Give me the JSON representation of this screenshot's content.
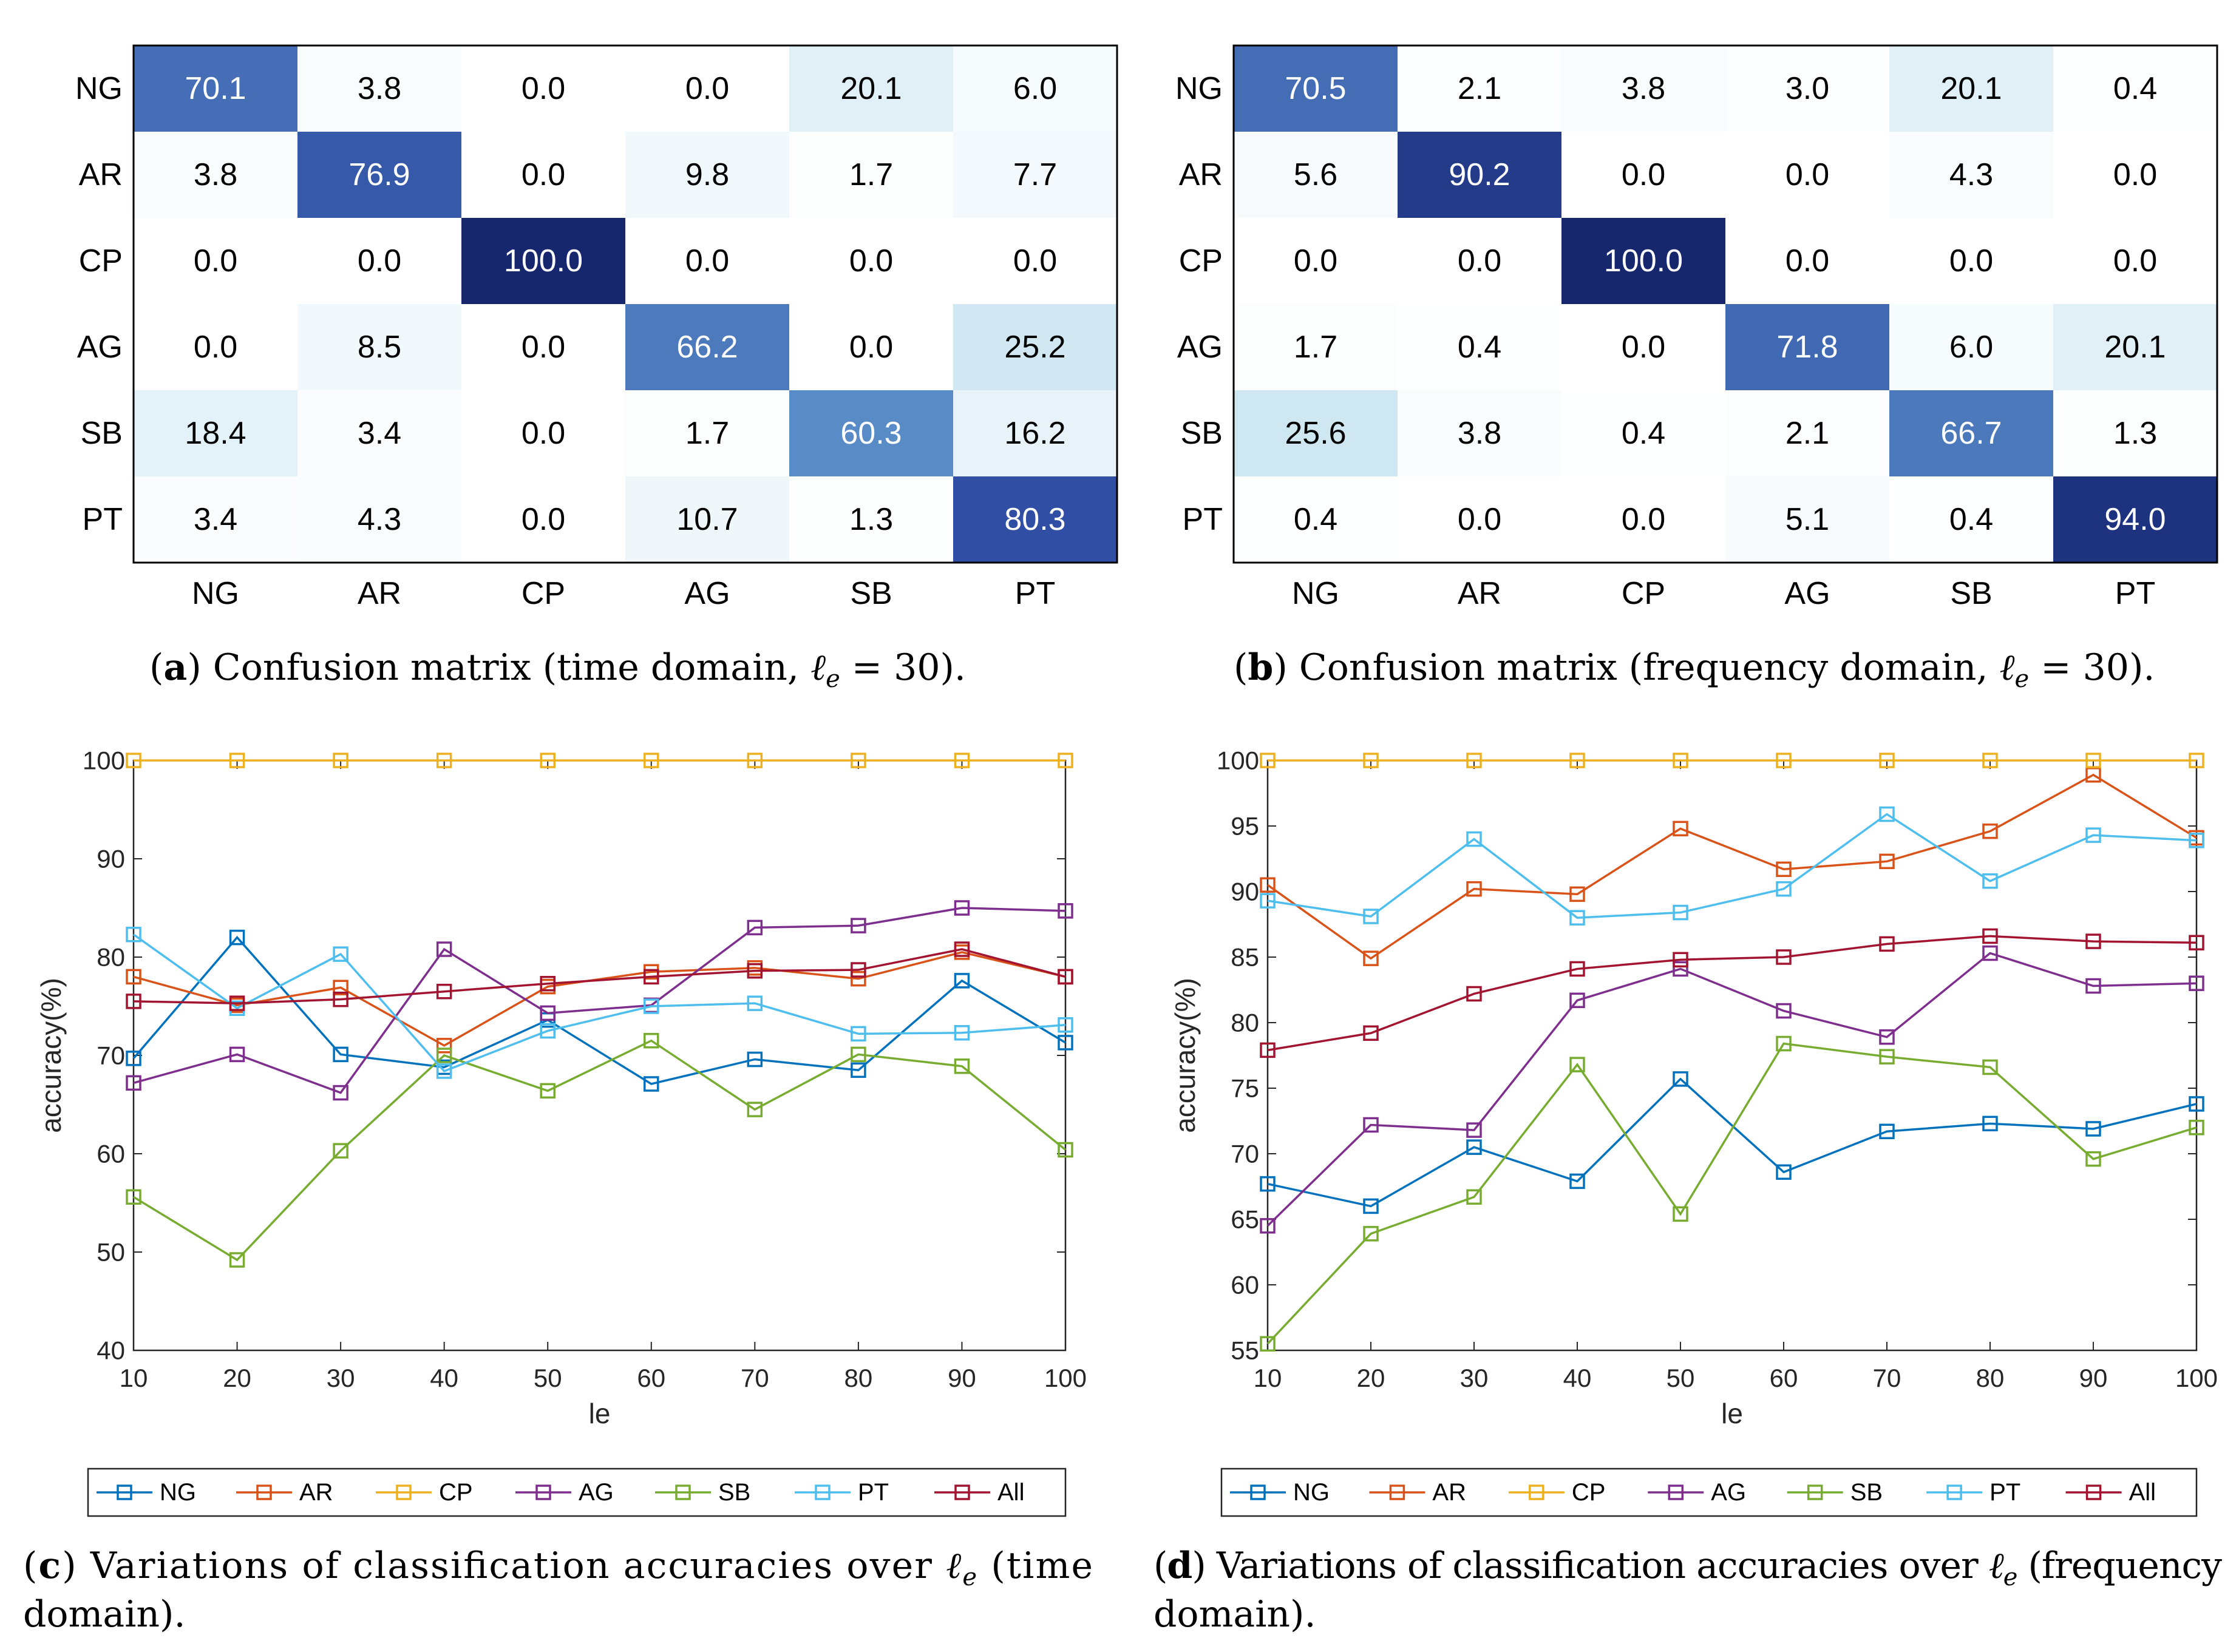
{
  "chart_data": [
    {
      "id": "a",
      "type": "heatmap",
      "panel_label": "a",
      "caption": "Confusion matrix (time domain, ℓe = 30).",
      "caption_parts": [
        "Confusion matrix (time domain, ",
        "ℓ",
        "e",
        " = 30)."
      ],
      "rows": [
        "NG",
        "AR",
        "CP",
        "AG",
        "SB",
        "PT"
      ],
      "cols": [
        "NG",
        "AR",
        "CP",
        "AG",
        "SB",
        "PT"
      ],
      "values": [
        [
          70.1,
          3.8,
          0.0,
          0.0,
          20.1,
          6.0
        ],
        [
          3.8,
          76.9,
          0.0,
          9.8,
          1.7,
          7.7
        ],
        [
          0.0,
          0.0,
          100.0,
          0.0,
          0.0,
          0.0
        ],
        [
          0.0,
          8.5,
          0.0,
          66.2,
          0.0,
          25.2
        ],
        [
          18.4,
          3.4,
          0.0,
          1.7,
          60.3,
          16.2
        ],
        [
          3.4,
          4.3,
          0.0,
          10.7,
          1.3,
          80.3
        ]
      ]
    },
    {
      "id": "b",
      "type": "heatmap",
      "panel_label": "b",
      "caption": "Confusion matrix (frequency domain, ℓe = 30).",
      "caption_parts": [
        "Confusion matrix (frequency domain, ",
        "ℓ",
        "e",
        " = 30)."
      ],
      "rows": [
        "NG",
        "AR",
        "CP",
        "AG",
        "SB",
        "PT"
      ],
      "cols": [
        "NG",
        "AR",
        "CP",
        "AG",
        "SB",
        "PT"
      ],
      "values": [
        [
          70.5,
          2.1,
          3.8,
          3.0,
          20.1,
          0.4
        ],
        [
          5.6,
          90.2,
          0.0,
          0.0,
          4.3,
          0.0
        ],
        [
          0.0,
          0.0,
          100.0,
          0.0,
          0.0,
          0.0
        ],
        [
          1.7,
          0.4,
          0.0,
          71.8,
          6.0,
          20.1
        ],
        [
          25.6,
          3.8,
          0.4,
          2.1,
          66.7,
          1.3
        ],
        [
          0.4,
          0.0,
          0.0,
          5.1,
          0.4,
          94.0
        ]
      ]
    },
    {
      "id": "c",
      "type": "line",
      "panel_label": "c",
      "caption_line1": "Variations of classification accuracies over ℓe (time",
      "caption_line1_parts": [
        "Variations of classification accuracies over ",
        "ℓ",
        "e",
        " (time"
      ],
      "caption_line2": "domain).",
      "xlabel": "le",
      "ylabel": "accuracy(%)",
      "x": [
        10,
        20,
        30,
        40,
        50,
        60,
        70,
        80,
        90,
        100
      ],
      "xlim": [
        10,
        100
      ],
      "ylim": [
        40,
        100
      ],
      "yticks": [
        40,
        50,
        60,
        70,
        80,
        90,
        100
      ],
      "series": [
        {
          "name": "NG",
          "color": "#0072BD",
          "values": [
            69.7,
            82.0,
            70.1,
            68.8,
            73.6,
            67.1,
            69.6,
            68.5,
            77.6,
            71.3
          ]
        },
        {
          "name": "AR",
          "color": "#D95319",
          "values": [
            78.0,
            75.1,
            76.9,
            71.0,
            77.0,
            78.5,
            78.9,
            77.8,
            80.5,
            78.0
          ]
        },
        {
          "name": "CP",
          "color": "#EDB120",
          "values": [
            100,
            100,
            100,
            100,
            100,
            100,
            100,
            100,
            100,
            100
          ]
        },
        {
          "name": "AG",
          "color": "#7E2F8E",
          "values": [
            67.2,
            70.1,
            66.2,
            80.8,
            74.3,
            75.1,
            83.0,
            83.2,
            85.0,
            84.7
          ]
        },
        {
          "name": "SB",
          "color": "#77AC30",
          "values": [
            55.6,
            49.2,
            60.3,
            70.0,
            66.4,
            71.5,
            64.5,
            70.1,
            68.9,
            60.4
          ]
        },
        {
          "name": "PT",
          "color": "#4DBEEE",
          "values": [
            82.3,
            74.8,
            80.3,
            68.4,
            72.5,
            75.0,
            75.3,
            72.2,
            72.3,
            73.1
          ]
        },
        {
          "name": "All",
          "color": "#A2142F",
          "values": [
            75.5,
            75.3,
            75.7,
            76.5,
            77.3,
            78.0,
            78.6,
            78.7,
            80.8,
            78.0
          ]
        }
      ]
    },
    {
      "id": "d",
      "type": "line",
      "panel_label": "d",
      "caption_line1": "Variations of classification accuracies over ℓe (frequency",
      "caption_line1_parts": [
        "Variations of classification accuracies over ",
        "ℓ",
        "e",
        " (frequency"
      ],
      "caption_line2": "domain).",
      "xlabel": "le",
      "ylabel": "accuracy(%)",
      "x": [
        10,
        20,
        30,
        40,
        50,
        60,
        70,
        80,
        90,
        100
      ],
      "xlim": [
        10,
        100
      ],
      "ylim": [
        55,
        100
      ],
      "yticks": [
        55,
        60,
        65,
        70,
        75,
        80,
        85,
        90,
        95,
        100
      ],
      "series": [
        {
          "name": "NG",
          "color": "#0072BD",
          "values": [
            67.7,
            66.0,
            70.5,
            67.9,
            75.7,
            68.6,
            71.7,
            72.3,
            71.9,
            73.8
          ]
        },
        {
          "name": "AR",
          "color": "#D95319",
          "values": [
            90.5,
            84.9,
            90.2,
            89.8,
            94.8,
            91.7,
            92.3,
            94.6,
            98.9,
            94.1
          ]
        },
        {
          "name": "CP",
          "color": "#EDB120",
          "values": [
            100,
            100,
            100,
            100,
            100,
            100,
            100,
            100,
            100,
            100
          ]
        },
        {
          "name": "AG",
          "color": "#7E2F8E",
          "values": [
            64.5,
            72.2,
            71.8,
            81.7,
            84.1,
            80.9,
            78.9,
            85.3,
            82.8,
            83.0
          ]
        },
        {
          "name": "SB",
          "color": "#77AC30",
          "values": [
            55.5,
            63.9,
            66.7,
            76.8,
            65.4,
            78.4,
            77.4,
            76.6,
            69.6,
            72.0
          ]
        },
        {
          "name": "PT",
          "color": "#4DBEEE",
          "values": [
            89.3,
            88.1,
            94.0,
            88.0,
            88.4,
            90.2,
            95.9,
            90.8,
            94.3,
            93.9
          ]
        },
        {
          "name": "All",
          "color": "#A2142F",
          "values": [
            77.9,
            79.2,
            82.2,
            84.1,
            84.8,
            85.0,
            86.0,
            86.6,
            86.2,
            86.1
          ]
        }
      ]
    }
  ]
}
